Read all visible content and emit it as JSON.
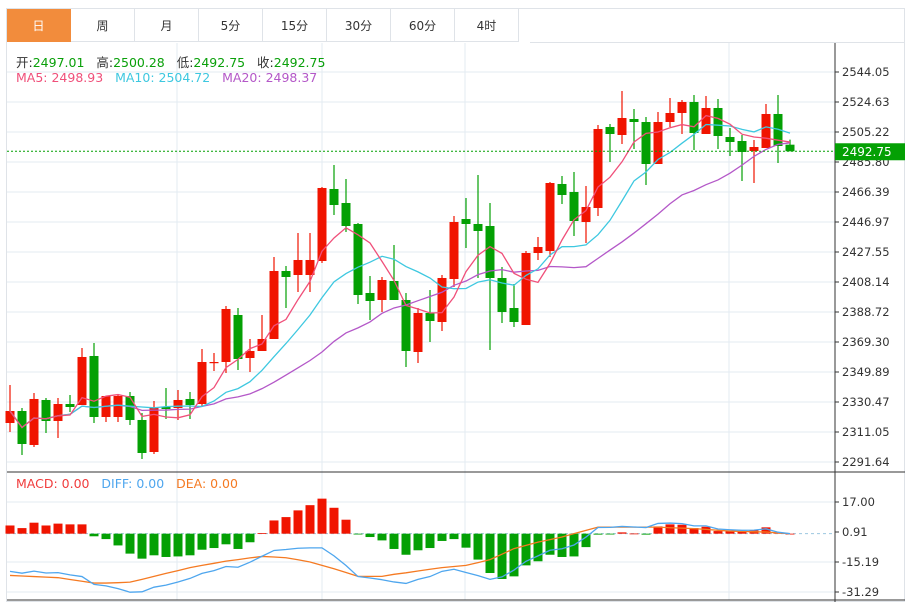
{
  "tabs": [
    {
      "label": "日",
      "active": true
    },
    {
      "label": "周"
    },
    {
      "label": "月"
    },
    {
      "label": "5分"
    },
    {
      "label": "15分"
    },
    {
      "label": "30分"
    },
    {
      "label": "60分"
    },
    {
      "label": "4时"
    }
  ],
  "ohlc_legend": {
    "open_label": "开:",
    "open": "2497.01",
    "high_label": "高:",
    "high": "2500.28",
    "low_label": "低:",
    "low": "2492.75",
    "close_label": "收:",
    "close": "2492.75"
  },
  "ma_legend": {
    "ma5": "MA5: 2498.93",
    "ma10": "MA10: 2504.72",
    "ma20": "MA20: 2498.37"
  },
  "macd_legend": {
    "macd": "MACD: 0.00",
    "diff": "DIFF: 0.00",
    "dea": "DEA: 0.00"
  },
  "current_price": "2492.75",
  "colors": {
    "up": "#f01400",
    "down": "#04a004",
    "ma5": "#f0507a",
    "ma10": "#3ec8e0",
    "ma20": "#b458c8",
    "diff": "#4ea6ee",
    "dea": "#f57a22",
    "active_tab": "#f28c3c",
    "grid": "#e3ebf2"
  },
  "chart_data": [
    {
      "type": "candlestick",
      "y_ticks": [
        "2544.05",
        "2524.63",
        "2505.22",
        "2485.80",
        "2466.39",
        "2446.97",
        "2427.55",
        "2408.14",
        "2388.72",
        "2369.30",
        "2349.89",
        "2330.47",
        "2311.05",
        "2291.64"
      ],
      "ylim": [
        2291.64,
        2544.05
      ],
      "grid": true,
      "moving_averages": [
        5,
        10,
        20
      ],
      "candles": [
        [
          2316.88,
          2341.48,
          2311.06,
          2324.65
        ],
        [
          2324.65,
          2326.59,
          2296.17,
          2303.29
        ],
        [
          2302.65,
          2336.3,
          2301.35,
          2332.42
        ],
        [
          2331.77,
          2333.06,
          2310.41,
          2318.18
        ],
        [
          2318.18,
          2333.06,
          2307.18,
          2329.18
        ],
        [
          2329.18,
          2335.01,
          2324.0,
          2327.24
        ],
        [
          2328.53,
          2365.42,
          2328.53,
          2359.6
        ],
        [
          2360.25,
          2368.66,
          2316.88,
          2320.77
        ],
        [
          2320.77,
          2334.36,
          2317.53,
          2334.36
        ],
        [
          2320.77,
          2335.01,
          2317.53,
          2334.36
        ],
        [
          2334.36,
          2336.95,
          2315.59,
          2318.83
        ],
        [
          2318.83,
          2323.36,
          2293.59,
          2297.47
        ],
        [
          2298.12,
          2331.12,
          2296.82,
          2327.24
        ],
        [
          2327.24,
          2339.54,
          2319.47,
          2325.95
        ],
        [
          2326.59,
          2338.24,
          2318.83,
          2331.77
        ],
        [
          2332.42,
          2336.95,
          2319.47,
          2328.53
        ],
        [
          2329.18,
          2364.78,
          2327.24,
          2356.36
        ],
        [
          2355.72,
          2362.19,
          2350.54,
          2356.36
        ],
        [
          2356.36,
          2392.61,
          2349.24,
          2390.67
        ],
        [
          2386.78,
          2391.31,
          2351.19,
          2358.31
        ],
        [
          2358.95,
          2371.25,
          2349.89,
          2363.48
        ],
        [
          2363.48,
          2386.78,
          2363.48,
          2371.25
        ],
        [
          2371.25,
          2424.32,
          2371.25,
          2415.26
        ],
        [
          2415.26,
          2418.49,
          2391.31,
          2411.38
        ],
        [
          2412.67,
          2439.85,
          2401.67,
          2422.38
        ],
        [
          2412.67,
          2439.85,
          2401.67,
          2422.38
        ],
        [
          2421.73,
          2469.62,
          2420.44,
          2468.98
        ],
        [
          2468.33,
          2483.86,
          2451.5,
          2457.97
        ],
        [
          2459.27,
          2474.8,
          2440.5,
          2444.38
        ],
        [
          2445.68,
          2446.32,
          2393.9,
          2399.73
        ],
        [
          2401.02,
          2412.02,
          2383.55,
          2395.84
        ],
        [
          2396.49,
          2411.38,
          2388.72,
          2409.43
        ],
        [
          2408.79,
          2432.09,
          2396.49,
          2396.49
        ],
        [
          2396.49,
          2401.02,
          2353.13,
          2363.48
        ],
        [
          2362.84,
          2391.31,
          2355.72,
          2388.08
        ],
        [
          2388.08,
          2402.96,
          2369.31,
          2382.9
        ],
        [
          2382.25,
          2412.67,
          2376.43,
          2410.73
        ],
        [
          2410.08,
          2450.85,
          2404.9,
          2446.97
        ],
        [
          2448.91,
          2462.5,
          2430.14,
          2445.68
        ],
        [
          2445.68,
          2477.39,
          2410.73,
          2441.15
        ],
        [
          2444.38,
          2459.27,
          2364.13,
          2410.73
        ],
        [
          2410.73,
          2417.85,
          2381.6,
          2388.72
        ],
        [
          2391.31,
          2406.85,
          2379.02,
          2382.25
        ],
        [
          2380.31,
          2428.2,
          2380.31,
          2426.91
        ],
        [
          2426.91,
          2437.26,
          2422.38,
          2430.79
        ],
        [
          2428.2,
          2472.86,
          2424.32,
          2472.21
        ],
        [
          2471.57,
          2476.74,
          2458.62,
          2464.45
        ],
        [
          2466.39,
          2479.33,
          2437.91,
          2447.62
        ],
        [
          2446.97,
          2470.27,
          2433.38,
          2456.68
        ],
        [
          2456.03,
          2509.75,
          2450.85,
          2507.16
        ],
        [
          2508.46,
          2510.4,
          2485.8,
          2503.93
        ],
        [
          2503.28,
          2531.75,
          2497.45,
          2514.28
        ],
        [
          2513.63,
          2520.11,
          2494.22,
          2511.69
        ],
        [
          2511.69,
          2514.93,
          2470.92,
          2484.51
        ],
        [
          2484.51,
          2518.16,
          2484.51,
          2511.69
        ],
        [
          2511.69,
          2527.22,
          2508.46,
          2517.52
        ],
        [
          2517.52,
          2525.93,
          2503.93,
          2524.64
        ],
        [
          2524.64,
          2529.17,
          2493.57,
          2504.57
        ],
        [
          2503.93,
          2528.52,
          2503.93,
          2520.75
        ],
        [
          2520.75,
          2526.58,
          2494.22,
          2502.63
        ],
        [
          2501.98,
          2507.81,
          2489.69,
          2498.75
        ],
        [
          2499.39,
          2503.28,
          2473.51,
          2492.28
        ],
        [
          2492.92,
          2500.04,
          2472.21,
          2495.51
        ],
        [
          2494.86,
          2523.34,
          2494.86,
          2516.87
        ],
        [
          2516.87,
          2529.17,
          2485.16,
          2496.16
        ],
        [
          2497.01,
          2500.28,
          2492.75,
          2492.75
        ]
      ]
    },
    {
      "type": "bar+line",
      "y_ticks": [
        "17.00",
        "0.91",
        "-15.19",
        "-31.29"
      ],
      "ylim": [
        -31.29,
        17.0
      ],
      "macd": [
        4.4,
        3.0,
        5.9,
        4.4,
        5.4,
        5.0,
        5.0,
        -1.4,
        -2.9,
        -6.3,
        -10.7,
        -13.4,
        -11.6,
        -12.5,
        -12.2,
        -11.6,
        -8.6,
        -7.7,
        -5.7,
        -8.2,
        -4.6,
        0.3,
        7.1,
        8.9,
        12.5,
        15.3,
        18.8,
        13.9,
        7.5,
        -0.2,
        -1.8,
        -3.6,
        -8.2,
        -11.3,
        -8.9,
        -7.7,
        -3.9,
        -2.9,
        -7.5,
        -13.9,
        -21.1,
        -24.3,
        -22.9,
        -17.0,
        -14.8,
        -11.3,
        -12.5,
        -12.2,
        -7.2,
        -0.5,
        -0.3,
        0.7,
        0.1,
        -0.5,
        3.9,
        5.0,
        4.8,
        3.0,
        3.7,
        1.4,
        1.3,
        1.1,
        1.8,
        3.4,
        0.7,
        0.0
      ],
      "diff": [
        -20.2,
        -21.2,
        -20.1,
        -21.1,
        -20.9,
        -22.1,
        -23.0,
        -27.2,
        -28.0,
        -29.5,
        -31.4,
        -31.2,
        -28.7,
        -27.6,
        -25.9,
        -24.0,
        -21.3,
        -19.8,
        -17.6,
        -18.0,
        -15.3,
        -12.1,
        -9.0,
        -8.5,
        -7.8,
        -7.6,
        -7.6,
        -11.9,
        -17.1,
        -23.0,
        -23.8,
        -24.7,
        -25.9,
        -26.7,
        -24.5,
        -23.0,
        -20.2,
        -19.1,
        -20.8,
        -22.5,
        -24.5,
        -23.2,
        -19.5,
        -14.8,
        -11.9,
        -8.9,
        -8.1,
        -6.1,
        -1.8,
        3.3,
        3.4,
        3.9,
        3.6,
        3.3,
        5.5,
        5.7,
        5.4,
        4.2,
        4.2,
        2.5,
        2.1,
        1.8,
        1.9,
        2.6,
        0.8,
        0.0
      ],
      "dea": [
        -22.4,
        -22.7,
        -23.0,
        -23.3,
        -23.6,
        -24.6,
        -25.5,
        -26.5,
        -26.5,
        -26.3,
        -26.0,
        -24.5,
        -22.9,
        -21.3,
        -19.8,
        -18.2,
        -17.0,
        -15.9,
        -14.7,
        -13.9,
        -13.0,
        -12.2,
        -12.5,
        -12.9,
        -14.0,
        -15.2,
        -17.0,
        -18.8,
        -20.8,
        -22.9,
        -22.9,
        -22.9,
        -21.8,
        -21.0,
        -20.0,
        -19.1,
        -18.2,
        -17.6,
        -17.0,
        -15.5,
        -13.9,
        -11.0,
        -8.0,
        -6.3,
        -4.5,
        -3.2,
        -1.8,
        0.0,
        1.8,
        3.5,
        3.5,
        3.5,
        3.5,
        3.5,
        3.5,
        3.2,
        3.0,
        2.7,
        2.3,
        1.8,
        1.4,
        1.2,
        1.0,
        0.9,
        0.4,
        0.0
      ]
    }
  ]
}
